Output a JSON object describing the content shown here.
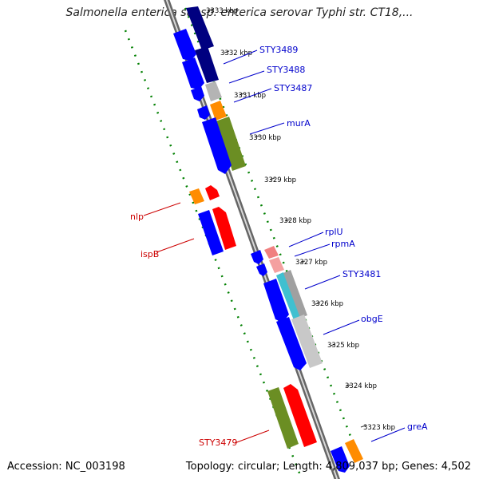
{
  "title": "Salmonella enterica subsp. enterica serovar Typhi str. CT18,...",
  "footer": {
    "accession": "Accession: NC_003198",
    "topology": "Topology: circular; Length: 4,809,037 bp; Genes: 4,502"
  },
  "map": {
    "strand_colors": {
      "forward": "#0000cc",
      "reverse": "#cc0000",
      "backbone": "#888888",
      "ticks": "#008000"
    },
    "scale_ticks": [
      {
        "label": "3333 kbp"
      },
      {
        "label": "3332 kbp"
      },
      {
        "label": "3331 kbp"
      },
      {
        "label": "3330 kbp"
      },
      {
        "label": "3329 kbp"
      },
      {
        "label": "3328 kbp"
      },
      {
        "label": "3327 kbp"
      },
      {
        "label": "3326 kbp"
      },
      {
        "label": "3325 kbp"
      },
      {
        "label": "3324 kbp"
      },
      {
        "label": "3323 kbp"
      }
    ],
    "gene_labels": [
      {
        "text": "STY3489",
        "strand": "forward"
      },
      {
        "text": "STY3488",
        "strand": "forward"
      },
      {
        "text": "STY3487",
        "strand": "forward"
      },
      {
        "text": "murA",
        "strand": "forward"
      },
      {
        "text": "nlp",
        "strand": "reverse"
      },
      {
        "text": "ispB",
        "strand": "reverse"
      },
      {
        "text": "rplU",
        "strand": "forward"
      },
      {
        "text": "rpmA",
        "strand": "forward"
      },
      {
        "text": "STY3481",
        "strand": "forward"
      },
      {
        "text": "obgE",
        "strand": "forward"
      },
      {
        "text": "STY3479",
        "strand": "reverse"
      },
      {
        "text": "greA",
        "strand": "forward"
      }
    ]
  }
}
